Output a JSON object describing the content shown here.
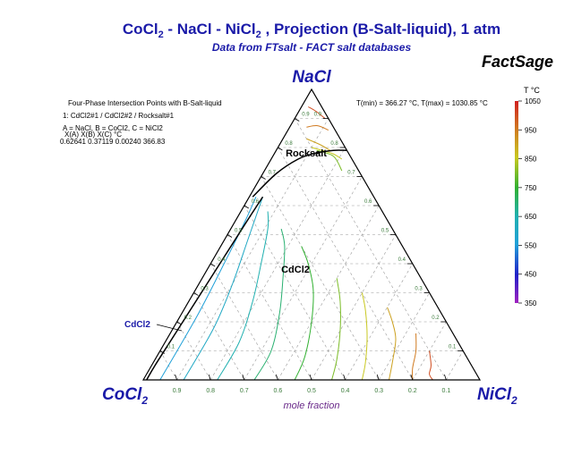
{
  "chart_data": {
    "type": "ternary",
    "title": {
      "part1": "CoCl",
      "sub1": "2",
      "part2": " - NaCl - NiCl",
      "sub2": "2",
      "part3": " , Projection (B-Salt-liquid), 1 atm"
    },
    "subtitle": "Data from FTsalt - FACT salt databases",
    "brand": "FactSage",
    "corners": {
      "top": "NaCl",
      "left": {
        "main": "CoCl",
        "sub": "2"
      },
      "right": {
        "main": "NiCl",
        "sub": "2"
      }
    },
    "bottom_axis_label": "mole fraction",
    "bottom_ticks": [
      "0.9",
      "0.8",
      "0.7",
      "0.6",
      "0.5",
      "0.4",
      "0.3",
      "0.2",
      "0.1"
    ],
    "right_ticks": [
      "0.1",
      "0.2",
      "0.3",
      "0.4",
      "0.5",
      "0.6",
      "0.7",
      "0.8",
      "0.9"
    ],
    "left_ticks": [
      "0.1",
      "0.2",
      "0.3",
      "0.4",
      "0.5",
      "0.6",
      "0.7",
      "0.8",
      "0.9"
    ],
    "info_box": {
      "title": "Four-Phase Intersection Points with B-Salt-liquid",
      "line1": "1:  CdCl2#1 / CdCl2#2 / Rocksalt#1",
      "line2": "A = NaCl,  B = CoCl2,  C = NiCl2",
      "headers": "X(A)      X(B)      X(C)       °C",
      "values": "0.62641  0.37119  0.00240   366.83"
    },
    "tmin_tmax": "T(min) = 366.27 °C, T(max) = 1030.85 °C",
    "colorbar": {
      "title": "T °C",
      "ticks": [
        "1050",
        "950",
        "850",
        "750",
        "650",
        "550",
        "450",
        "350"
      ],
      "min": 350,
      "max": 1050
    },
    "region_labels": {
      "rocksalt": "Rocksalt",
      "cdcl2": "CdCl2",
      "cdcl2_side": "CdCl2"
    },
    "colors": {
      "title": "#1a1aa8",
      "corner_labels": "#1a1aa8",
      "subtitle": "#1a1aa8",
      "axis_label": "#6a2a8a",
      "tick_labels": "#3a7a3a",
      "boundary": "#000000"
    },
    "isotherms_note": "Liquidus isotherms in composition space (x = NiCl2 fraction, y = NaCl fraction), temperatures in °C",
    "isotherms": [
      {
        "T": 1000,
        "points": [
          [
            0.02,
            0.94
          ],
          [
            0.05,
            0.925
          ],
          [
            0.09,
            0.9
          ]
        ]
      },
      {
        "T": 950,
        "points": [
          [
            0.05,
            0.87
          ],
          [
            0.08,
            0.875
          ],
          [
            0.12,
            0.86
          ]
        ]
      },
      {
        "T": 900,
        "points": [
          [
            0.07,
            0.83
          ],
          [
            0.12,
            0.81
          ],
          [
            0.16,
            0.79
          ]
        ]
      },
      {
        "T": 850,
        "points": [
          [
            0.1,
            0.8
          ],
          [
            0.17,
            0.78
          ],
          [
            0.21,
            0.76
          ]
        ]
      },
      {
        "T": 800,
        "points": [
          [
            0.12,
            0.79
          ],
          [
            0.18,
            0.77
          ],
          [
            0.23,
            0.72
          ]
        ]
      },
      {
        "T": 1000,
        "points": [
          [
            0.86,
            0.0
          ],
          [
            0.84,
            0.02
          ],
          [
            0.83,
            0.05
          ],
          [
            0.8,
            0.1
          ]
        ]
      },
      {
        "T": 950,
        "points": [
          [
            0.8,
            0.0
          ],
          [
            0.78,
            0.04
          ],
          [
            0.76,
            0.1
          ],
          [
            0.73,
            0.16
          ]
        ]
      },
      {
        "T": 900,
        "points": [
          [
            0.73,
            0.0
          ],
          [
            0.71,
            0.06
          ],
          [
            0.68,
            0.14
          ],
          [
            0.64,
            0.2
          ],
          [
            0.6,
            0.25
          ]
        ]
      },
      {
        "T": 850,
        "points": [
          [
            0.65,
            0.0
          ],
          [
            0.63,
            0.06
          ],
          [
            0.59,
            0.15
          ],
          [
            0.54,
            0.24
          ],
          [
            0.5,
            0.3
          ]
        ]
      },
      {
        "T": 800,
        "points": [
          [
            0.56,
            0.0
          ],
          [
            0.54,
            0.07
          ],
          [
            0.5,
            0.17
          ],
          [
            0.45,
            0.27
          ],
          [
            0.4,
            0.35
          ]
        ]
      },
      {
        "T": 750,
        "points": [
          [
            0.45,
            0.0
          ],
          [
            0.44,
            0.08
          ],
          [
            0.4,
            0.2
          ],
          [
            0.35,
            0.31
          ],
          [
            0.29,
            0.4
          ],
          [
            0.24,
            0.46
          ]
        ]
      },
      {
        "T": 700,
        "points": [
          [
            0.33,
            0.0
          ],
          [
            0.33,
            0.1
          ],
          [
            0.29,
            0.23
          ],
          [
            0.24,
            0.35
          ],
          [
            0.19,
            0.46
          ],
          [
            0.15,
            0.52
          ]
        ]
      },
      {
        "T": 650,
        "points": [
          [
            0.22,
            0.0
          ],
          [
            0.22,
            0.13
          ],
          [
            0.19,
            0.27
          ],
          [
            0.15,
            0.4
          ],
          [
            0.11,
            0.52
          ],
          [
            0.08,
            0.58
          ]
        ]
      },
      {
        "T": 600,
        "points": [
          [
            0.12,
            0.0
          ],
          [
            0.12,
            0.18
          ],
          [
            0.1,
            0.33
          ],
          [
            0.07,
            0.48
          ],
          [
            0.05,
            0.58
          ],
          [
            0.04,
            0.63
          ]
        ]
      },
      {
        "T": 550,
        "points": [
          [
            0.05,
            0.0
          ],
          [
            0.05,
            0.22
          ],
          [
            0.04,
            0.4
          ],
          [
            0.03,
            0.54
          ],
          [
            0.02,
            0.63
          ]
        ]
      }
    ],
    "boundaries": [
      {
        "name": "rocksalt-cdcl2",
        "points": [
          [
            0.01,
            0.63
          ],
          [
            0.04,
            0.71
          ],
          [
            0.08,
            0.76
          ],
          [
            0.12,
            0.78
          ],
          [
            0.17,
            0.79
          ],
          [
            0.21,
            0.79
          ]
        ]
      },
      {
        "name": "cdcl2-cdcl2",
        "points": [
          [
            0.04,
            0.63
          ],
          [
            0.035,
            0.55
          ],
          [
            0.03,
            0.45
          ],
          [
            0.025,
            0.35
          ],
          [
            0.02,
            0.25
          ],
          [
            0.015,
            0.15
          ],
          [
            0.01,
            0.05
          ],
          [
            0.01,
            0.0
          ]
        ]
      }
    ]
  }
}
